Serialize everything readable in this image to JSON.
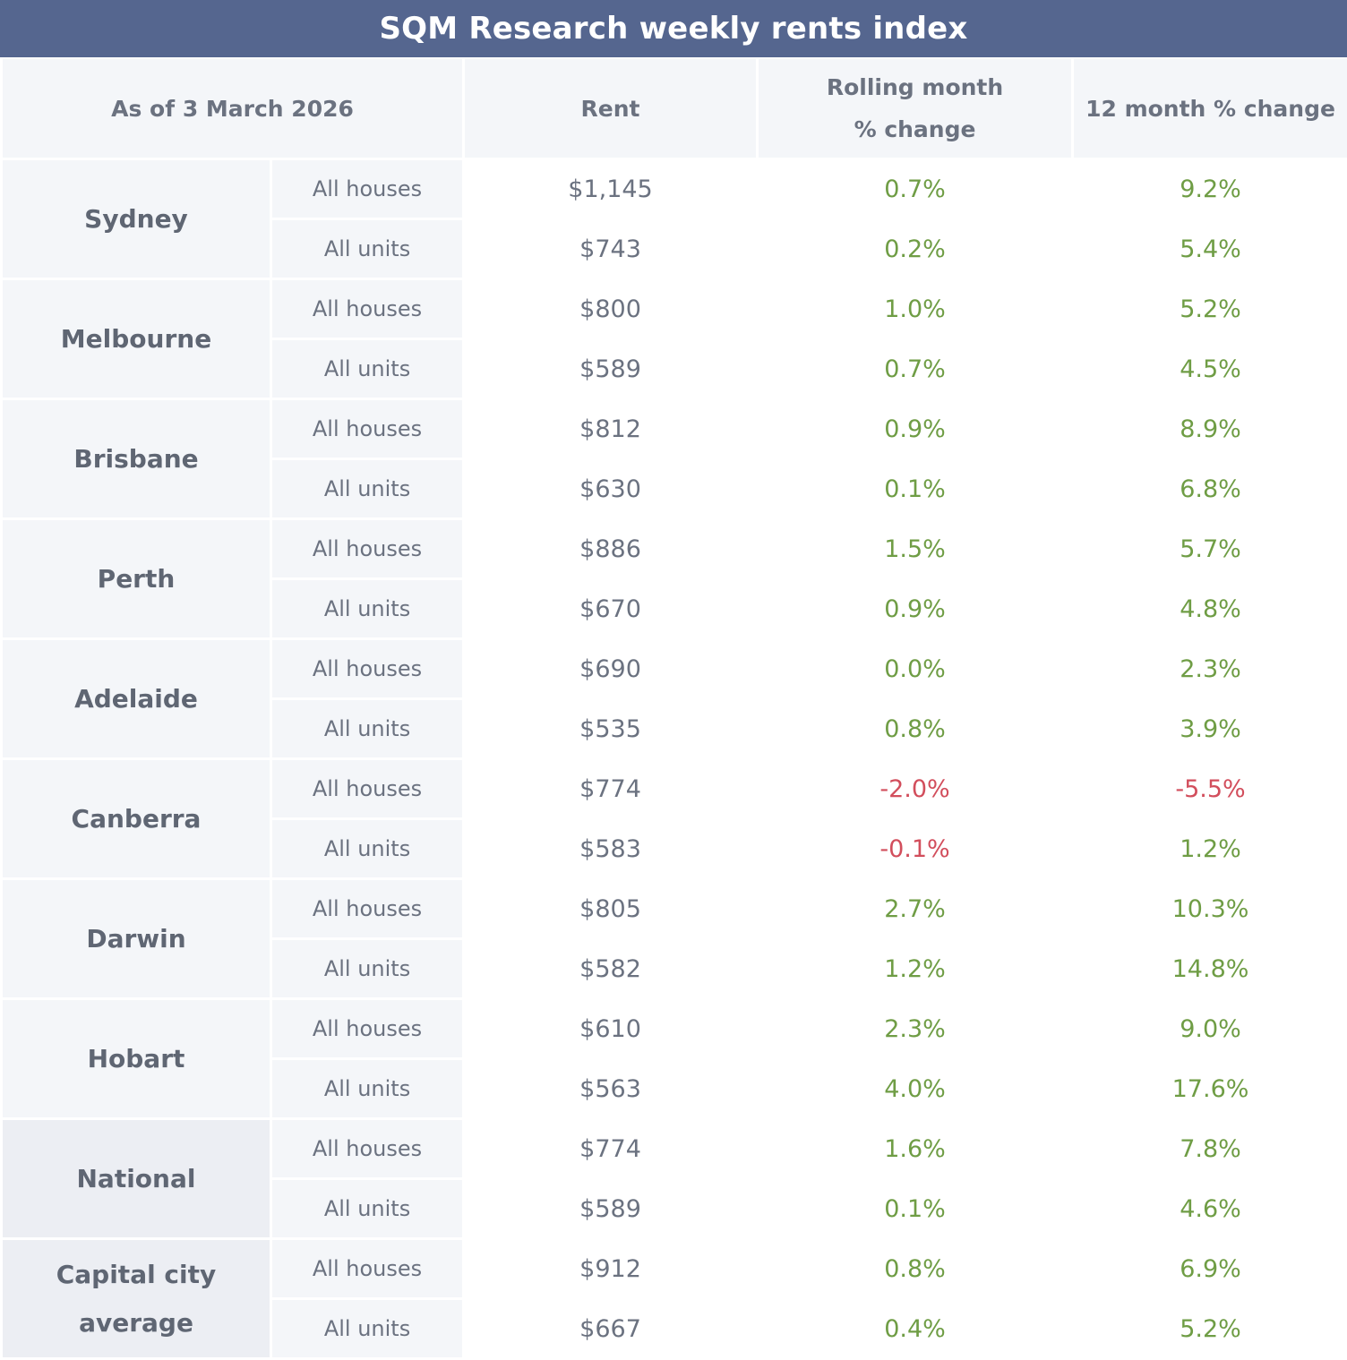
{
  "title": "SQM Research weekly rents index",
  "headers": {
    "as_of": "As of 3 March 2026",
    "rent": "Rent",
    "rolling_month": "Rolling month % change",
    "twelve_month": "12 month % change"
  },
  "rows": [
    {
      "city": "Sydney",
      "items": [
        {
          "type": "All houses",
          "rent": "$1,145",
          "month": "0.7%",
          "year": "9.2%"
        },
        {
          "type": "All units",
          "rent": "$743",
          "month": "0.2%",
          "year": "5.4%"
        }
      ]
    },
    {
      "city": "Melbourne",
      "items": [
        {
          "type": "All houses",
          "rent": "$800",
          "month": "1.0%",
          "year": "5.2%"
        },
        {
          "type": "All units",
          "rent": "$589",
          "month": "0.7%",
          "year": "4.5%"
        }
      ]
    },
    {
      "city": "Brisbane",
      "items": [
        {
          "type": "All houses",
          "rent": "$812",
          "month": "0.9%",
          "year": "8.9%"
        },
        {
          "type": "All units",
          "rent": "$630",
          "month": "0.1%",
          "year": "6.8%"
        }
      ]
    },
    {
      "city": "Perth",
      "items": [
        {
          "type": "All houses",
          "rent": "$886",
          "month": "1.5%",
          "year": "5.7%"
        },
        {
          "type": "All units",
          "rent": "$670",
          "month": "0.9%",
          "year": "4.8%"
        }
      ]
    },
    {
      "city": "Adelaide",
      "items": [
        {
          "type": "All houses",
          "rent": "$690",
          "month": "0.0%",
          "year": "2.3%"
        },
        {
          "type": "All units",
          "rent": "$535",
          "month": "0.8%",
          "year": "3.9%"
        }
      ]
    },
    {
      "city": "Canberra",
      "items": [
        {
          "type": "All houses",
          "rent": "$774",
          "month": "-2.0%",
          "year": "-5.5%"
        },
        {
          "type": "All units",
          "rent": "$583",
          "month": "-0.1%",
          "year": "1.2%"
        }
      ]
    },
    {
      "city": "Darwin",
      "items": [
        {
          "type": "All houses",
          "rent": "$805",
          "month": "2.7%",
          "year": "10.3%"
        },
        {
          "type": "All units",
          "rent": "$582",
          "month": "1.2%",
          "year": "14.8%"
        }
      ]
    },
    {
      "city": "Hobart",
      "items": [
        {
          "type": "All houses",
          "rent": "$610",
          "month": "2.3%",
          "year": "9.0%"
        },
        {
          "type": "All units",
          "rent": "$563",
          "month": "4.0%",
          "year": "17.6%"
        }
      ]
    },
    {
      "city": "National",
      "summary": true,
      "items": [
        {
          "type": "All houses",
          "rent": "$774",
          "month": "1.6%",
          "year": "7.8%"
        },
        {
          "type": "All units",
          "rent": "$589",
          "month": "0.1%",
          "year": "4.6%"
        }
      ]
    },
    {
      "city": "Capital city average",
      "summary": true,
      "items": [
        {
          "type": "All houses",
          "rent": "$912",
          "month": "0.8%",
          "year": "6.9%"
        },
        {
          "type": "All units",
          "rent": "$667",
          "month": "0.4%",
          "year": "5.2%"
        }
      ]
    }
  ],
  "colors": {
    "header_bar": "#55668f",
    "positive": "#6f9d45",
    "negative": "#d24e5c"
  }
}
